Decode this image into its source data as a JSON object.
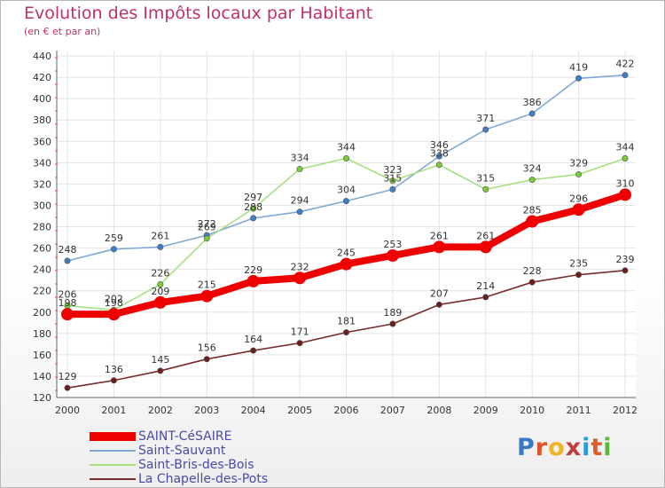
{
  "header": {
    "title": "Evolution des Impôts locaux par Habitant",
    "subtitle": "(en € et par an)"
  },
  "logo": {
    "text": "Proxiti",
    "letter_colors": [
      "#3a78c8",
      "#e0532a",
      "#f2b227",
      "#c83a3a",
      "#2a9ad8",
      "#e05a2a",
      "#5ab83a"
    ]
  },
  "chart_data": {
    "type": "line",
    "x": [
      "2000",
      "2001",
      "2002",
      "2003",
      "2004",
      "2005",
      "2006",
      "2007",
      "2008",
      "2009",
      "2010",
      "2011",
      "2012"
    ],
    "ylim": [
      120,
      445
    ],
    "yticks": [
      120,
      140,
      160,
      180,
      200,
      220,
      240,
      260,
      280,
      300,
      320,
      340,
      360,
      380,
      400,
      420,
      440
    ],
    "grid": true,
    "legend_position": "bottom-left",
    "series": [
      {
        "name": "SAINT-CéSAIRE",
        "color": "#ee0000",
        "marker": "#ee0000",
        "emphasis": true,
        "values": [
          198,
          198,
          209,
          215,
          229,
          232,
          245,
          253,
          261,
          261,
          285,
          296,
          310
        ]
      },
      {
        "name": "Saint-Sauvant",
        "color": "#7fa8d6",
        "marker": "#3f7fc8",
        "emphasis": false,
        "values": [
          248,
          259,
          261,
          272,
          288,
          294,
          304,
          315,
          346,
          371,
          386,
          419,
          422
        ]
      },
      {
        "name": "Saint-Bris-des-Bois",
        "color": "#a8e080",
        "marker": "#7acb3a",
        "emphasis": false,
        "values": [
          206,
          202,
          226,
          269,
          297,
          334,
          344,
          323,
          338,
          315,
          324,
          329,
          344
        ]
      },
      {
        "name": "La Chapelle-des-Pots",
        "color": "#7a2b2b",
        "marker": "#6a1f1f",
        "emphasis": false,
        "values": [
          129,
          136,
          145,
          156,
          164,
          171,
          181,
          189,
          207,
          214,
          228,
          235,
          239
        ]
      }
    ]
  }
}
